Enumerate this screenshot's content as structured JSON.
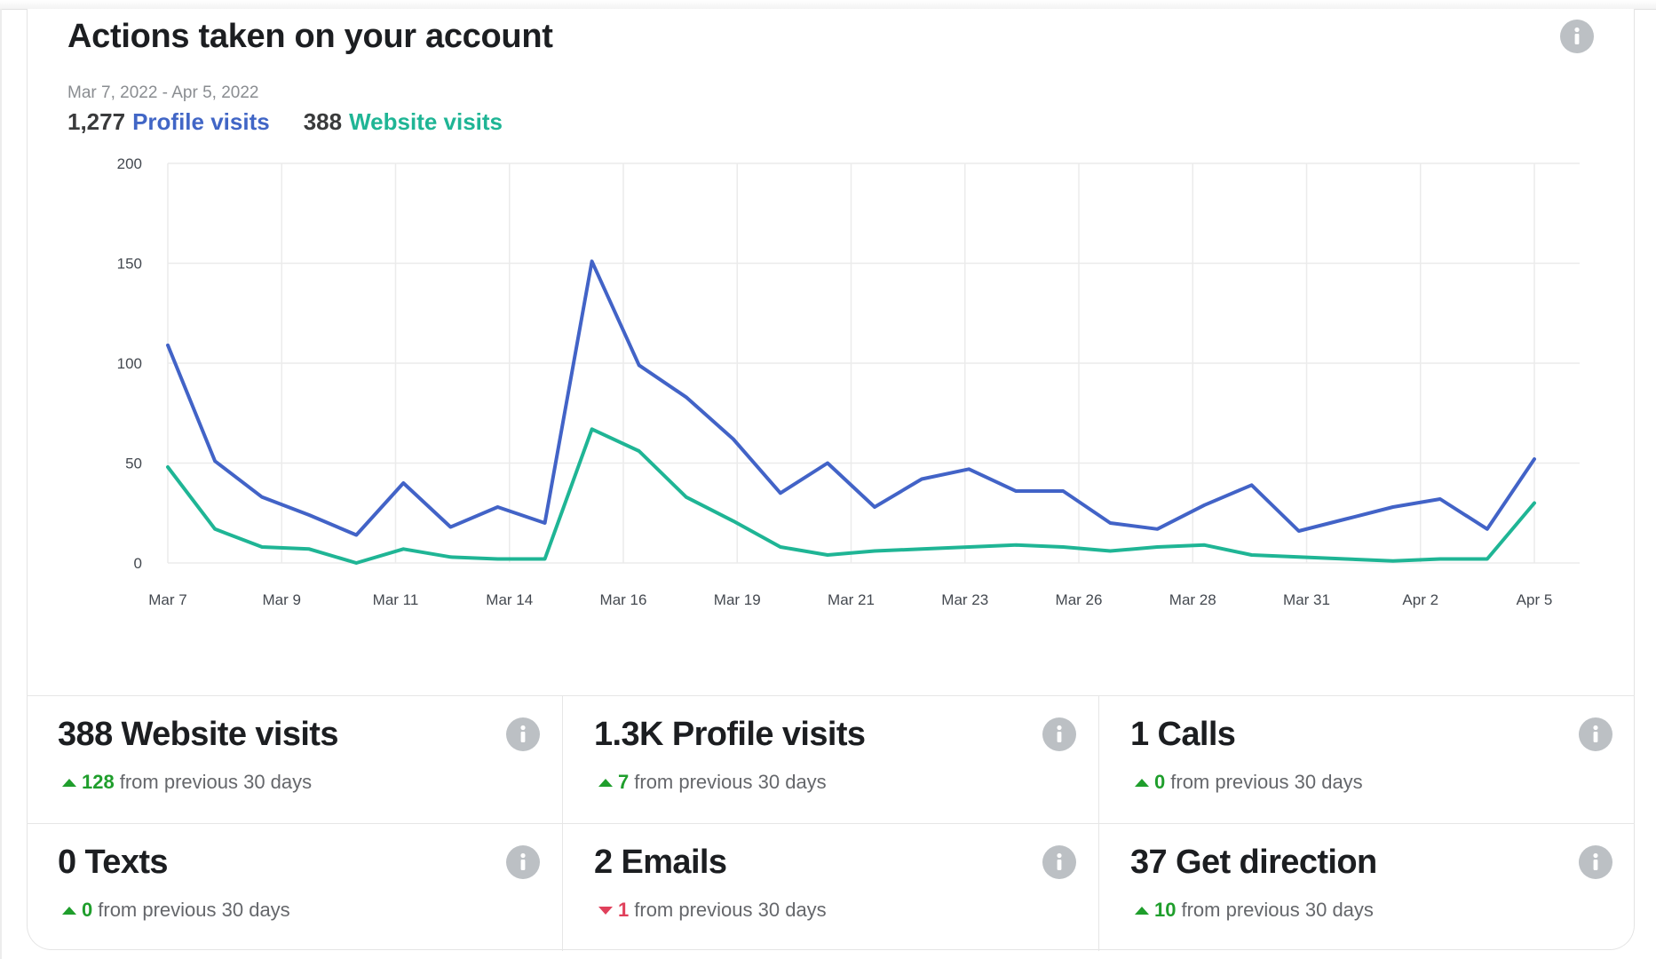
{
  "header": {
    "title": "Actions taken on your account",
    "info_icon": "info-icon",
    "date_range": "Mar 7, 2022 - Apr 5, 2022",
    "summary": [
      {
        "value": "1,277",
        "label": "Profile visits",
        "color": "#4166c6"
      },
      {
        "value": "388",
        "label": "Website visits",
        "color": "#1fb595"
      }
    ]
  },
  "chart_data": {
    "type": "line",
    "title": "",
    "xlabel": "",
    "ylabel": "",
    "ylim": [
      0,
      200
    ],
    "yticks": [
      "0",
      "50",
      "100",
      "150",
      "200"
    ],
    "xticks": [
      "Mar 7",
      "Mar 9",
      "Mar 11",
      "Mar 14",
      "Mar 16",
      "Mar 19",
      "Mar 21",
      "Mar 23",
      "Mar 26",
      "Mar 28",
      "Mar 31",
      "Apr 2",
      "Apr 5"
    ],
    "grid": true,
    "legend": "none",
    "x": [
      "Mar 7",
      "Mar 8",
      "Mar 9",
      "Mar 10",
      "Mar 11",
      "Mar 12",
      "Mar 13",
      "Mar 14",
      "Mar 15",
      "Mar 16",
      "Mar 17",
      "Mar 18",
      "Mar 19",
      "Mar 20",
      "Mar 21",
      "Mar 22",
      "Mar 23",
      "Mar 24",
      "Mar 25",
      "Mar 26",
      "Mar 27",
      "Mar 28",
      "Mar 29",
      "Mar 30",
      "Mar 31",
      "Apr 1",
      "Apr 2",
      "Apr 3",
      "Apr 4",
      "Apr 5"
    ],
    "series": [
      {
        "name": "Profile visits",
        "color": "#4263c7",
        "values": [
          109,
          51,
          33,
          24,
          14,
          40,
          18,
          28,
          20,
          151,
          99,
          83,
          62,
          35,
          50,
          28,
          42,
          47,
          36,
          36,
          20,
          17,
          29,
          39,
          16,
          22,
          28,
          32,
          17,
          52
        ]
      },
      {
        "name": "Website visits",
        "color": "#1fb595",
        "values": [
          48,
          17,
          8,
          7,
          0,
          7,
          3,
          2,
          2,
          67,
          56,
          33,
          21,
          8,
          4,
          6,
          7,
          8,
          9,
          8,
          6,
          8,
          9,
          4,
          3,
          2,
          1,
          2,
          2,
          30
        ]
      }
    ]
  },
  "stats": [
    {
      "title": "388 Website visits",
      "direction": "up",
      "delta": "128",
      "suffix": "from previous 30 days"
    },
    {
      "title": "1.3K Profile visits",
      "direction": "up",
      "delta": "7",
      "suffix": "from previous 30 days"
    },
    {
      "title": "1 Calls",
      "direction": "up",
      "delta": "0",
      "suffix": "from previous 30 days"
    },
    {
      "title": "0 Texts",
      "direction": "up",
      "delta": "0",
      "suffix": "from previous 30 days"
    },
    {
      "title": "2 Emails",
      "direction": "down",
      "delta": "1",
      "suffix": "from previous 30 days"
    },
    {
      "title": "37 Get direction",
      "direction": "up",
      "delta": "10",
      "suffix": "from previous 30 days"
    }
  ],
  "colors": {
    "up": "#1f9e2c",
    "down": "#e0405b",
    "info_icon": "#bcc0c4"
  }
}
